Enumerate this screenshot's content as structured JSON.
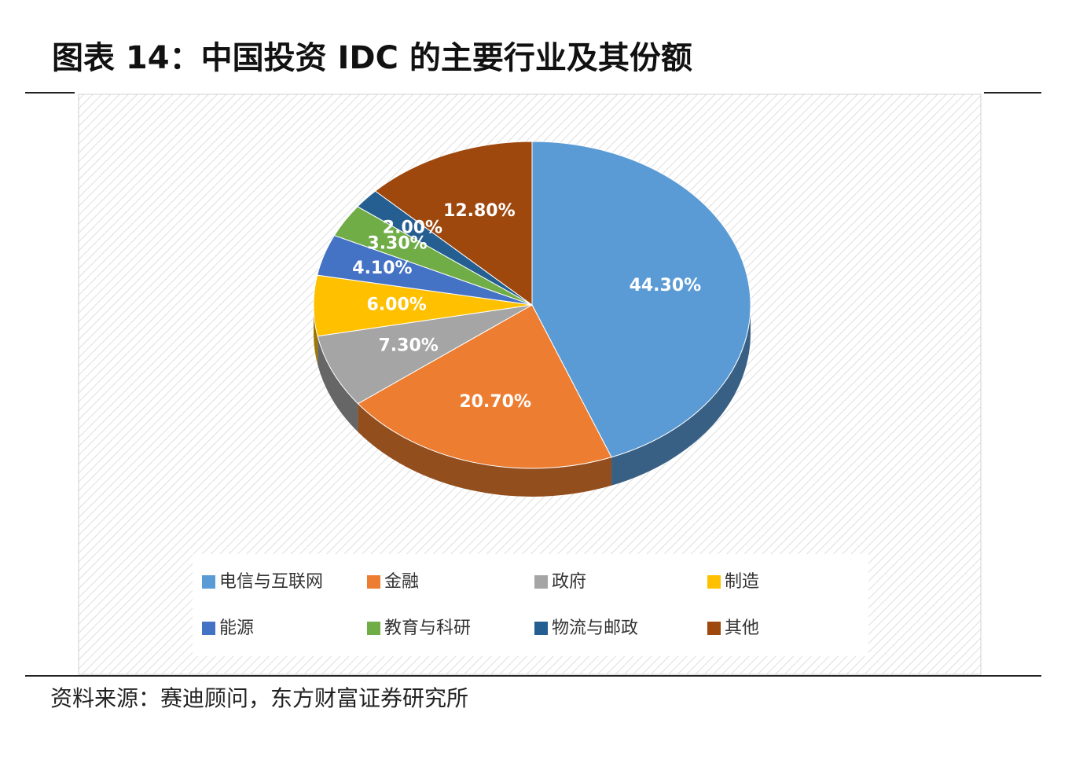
{
  "header": {
    "title": "图表 14：中国投资 IDC 的主要行业及其份额"
  },
  "chart_data": {
    "type": "pie",
    "categories": [
      "电信与互联网",
      "金融",
      "政府",
      "制造",
      "能源",
      "教育与科研",
      "物流与邮政",
      "其他"
    ],
    "values": [
      44.3,
      20.7,
      7.3,
      6.0,
      4.1,
      3.3,
      2.0,
      12.8
    ],
    "value_labels": [
      "44.30%",
      "20.70%",
      "7.30%",
      "6.00%",
      "4.10%",
      "3.30%",
      "2.00%",
      "12.80%"
    ],
    "colors": [
      "#5b9bd5",
      "#ed7d31",
      "#a5a5a5",
      "#ffc000",
      "#4472c4",
      "#70ad47",
      "#255e91",
      "#9e480e"
    ],
    "legend": "bottom"
  },
  "footer": {
    "source": "资料来源：赛迪顾问，东方财富证券研究所"
  }
}
